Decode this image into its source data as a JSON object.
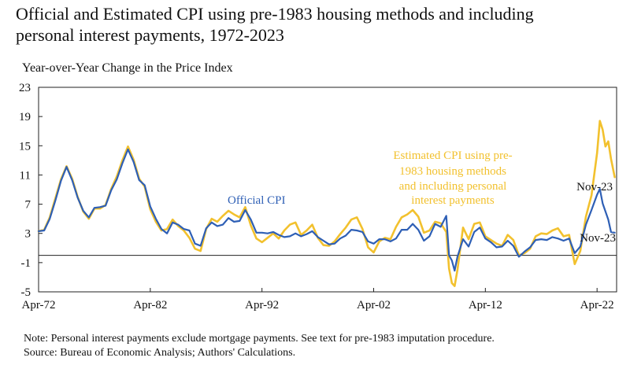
{
  "title_line1": "Official and Estimated CPI using pre-1983 housing methods and including",
  "title_line2": "personal interest payments, 1972-2023",
  "note_line1": "Note: Personal interest payments exclude mortgage payments. See text for pre-1983 imputation procedure.",
  "note_line2": "Source: Bureau of Economic Analysis; Authors' Calculations.",
  "chart_data": {
    "type": "line",
    "title": "Official and Estimated CPI using pre-1983 housing methods and including personal interest payments, 1972-2023",
    "ylabel": "Year-over-Year Change in the Price Index",
    "xlabel": "",
    "xlim": [
      1972.25,
      2024.0
    ],
    "ylim": [
      -5,
      23
    ],
    "yticks": [
      -5,
      -1,
      3,
      7,
      11,
      15,
      19,
      23
    ],
    "xticks": [
      {
        "label": "Apr-72",
        "x": 1972.25
      },
      {
        "label": "Apr-82",
        "x": 1982.25
      },
      {
        "label": "Apr-92",
        "x": 1992.25
      },
      {
        "label": "Apr-02",
        "x": 2002.25
      },
      {
        "label": "Apr-12",
        "x": 2012.25
      },
      {
        "label": "Apr-22",
        "x": 2022.25
      }
    ],
    "colors": {
      "official": "#2e5fb5",
      "estimated": "#f2c12e"
    },
    "annotations": [
      {
        "text": "Official CPI",
        "series": "Official CPI"
      },
      {
        "text": "Estimated CPI using pre-",
        "series": "Estimated"
      },
      {
        "text": "1983 housing methods",
        "series": "Estimated"
      },
      {
        "text": "and including  personal",
        "series": "Estimated"
      },
      {
        "text": "interest payments",
        "series": "Estimated"
      },
      {
        "text": "Nov-23",
        "series": "Estimated"
      },
      {
        "text": "Nov-23",
        "series": "Official CPI"
      }
    ],
    "series": [
      {
        "name": "Official CPI",
        "points": [
          [
            1972.25,
            3.3
          ],
          [
            1972.75,
            3.4
          ],
          [
            1973.25,
            5.0
          ],
          [
            1973.75,
            7.5
          ],
          [
            1974.25,
            10.2
          ],
          [
            1974.75,
            12.1
          ],
          [
            1975.25,
            10.3
          ],
          [
            1975.75,
            7.9
          ],
          [
            1976.25,
            6.1
          ],
          [
            1976.75,
            5.2
          ],
          [
            1977.25,
            6.5
          ],
          [
            1977.75,
            6.6
          ],
          [
            1978.25,
            6.8
          ],
          [
            1978.75,
            8.9
          ],
          [
            1979.25,
            10.4
          ],
          [
            1979.75,
            12.6
          ],
          [
            1980.25,
            14.5
          ],
          [
            1980.75,
            12.8
          ],
          [
            1981.25,
            10.3
          ],
          [
            1981.75,
            9.6
          ],
          [
            1982.25,
            6.7
          ],
          [
            1982.75,
            5.0
          ],
          [
            1983.25,
            3.6
          ],
          [
            1983.75,
            3.0
          ],
          [
            1984.25,
            4.5
          ],
          [
            1984.75,
            4.2
          ],
          [
            1985.25,
            3.6
          ],
          [
            1985.75,
            3.4
          ],
          [
            1986.25,
            1.6
          ],
          [
            1986.75,
            1.3
          ],
          [
            1987.25,
            3.7
          ],
          [
            1987.75,
            4.5
          ],
          [
            1988.25,
            4.0
          ],
          [
            1988.75,
            4.2
          ],
          [
            1989.25,
            5.1
          ],
          [
            1989.75,
            4.6
          ],
          [
            1990.25,
            4.7
          ],
          [
            1990.75,
            6.2
          ],
          [
            1991.25,
            4.9
          ],
          [
            1991.75,
            3.1
          ],
          [
            1992.25,
            3.1
          ],
          [
            1992.75,
            3.0
          ],
          [
            1993.25,
            3.2
          ],
          [
            1993.75,
            2.8
          ],
          [
            1994.25,
            2.5
          ],
          [
            1994.75,
            2.6
          ],
          [
            1995.25,
            3.0
          ],
          [
            1995.75,
            2.6
          ],
          [
            1996.25,
            2.9
          ],
          [
            1996.75,
            3.3
          ],
          [
            1997.25,
            2.5
          ],
          [
            1997.75,
            2.0
          ],
          [
            1998.25,
            1.5
          ],
          [
            1998.75,
            1.6
          ],
          [
            1999.25,
            2.3
          ],
          [
            1999.75,
            2.7
          ],
          [
            2000.25,
            3.5
          ],
          [
            2000.75,
            3.4
          ],
          [
            2001.25,
            3.2
          ],
          [
            2001.75,
            1.9
          ],
          [
            2002.25,
            1.6
          ],
          [
            2002.75,
            2.2
          ],
          [
            2003.25,
            2.2
          ],
          [
            2003.75,
            1.9
          ],
          [
            2004.25,
            2.3
          ],
          [
            2004.75,
            3.5
          ],
          [
            2005.25,
            3.5
          ],
          [
            2005.75,
            4.3
          ],
          [
            2006.25,
            3.5
          ],
          [
            2006.75,
            2.0
          ],
          [
            2007.25,
            2.6
          ],
          [
            2007.75,
            4.3
          ],
          [
            2008.25,
            3.9
          ],
          [
            2008.75,
            5.4
          ],
          [
            2009.0,
            0.0
          ],
          [
            2009.25,
            -0.7
          ],
          [
            2009.5,
            -2.1
          ],
          [
            2009.75,
            -0.2
          ],
          [
            2010.25,
            2.2
          ],
          [
            2010.75,
            1.2
          ],
          [
            2011.25,
            3.2
          ],
          [
            2011.75,
            3.8
          ],
          [
            2012.25,
            2.3
          ],
          [
            2012.75,
            1.8
          ],
          [
            2013.25,
            1.1
          ],
          [
            2013.75,
            1.2
          ],
          [
            2014.25,
            2.0
          ],
          [
            2014.75,
            1.3
          ],
          [
            2015.25,
            -0.2
          ],
          [
            2015.75,
            0.5
          ],
          [
            2016.25,
            1.1
          ],
          [
            2016.75,
            2.1
          ],
          [
            2017.25,
            2.2
          ],
          [
            2017.75,
            2.1
          ],
          [
            2018.25,
            2.5
          ],
          [
            2018.75,
            2.3
          ],
          [
            2019.25,
            2.0
          ],
          [
            2019.75,
            2.3
          ],
          [
            2020.25,
            0.3
          ],
          [
            2020.75,
            1.2
          ],
          [
            2021.25,
            4.2
          ],
          [
            2021.75,
            6.2
          ],
          [
            2022.25,
            8.3
          ],
          [
            2022.5,
            9.1
          ],
          [
            2022.75,
            7.1
          ],
          [
            2023.25,
            4.9
          ],
          [
            2023.5,
            3.2
          ],
          [
            2023.83,
            3.1
          ]
        ]
      },
      {
        "name": "Estimated CPI using pre-1983 housing methods and including personal interest payments",
        "points": [
          [
            1972.25,
            3.3
          ],
          [
            1972.75,
            3.5
          ],
          [
            1973.25,
            5.2
          ],
          [
            1973.75,
            7.8
          ],
          [
            1974.25,
            10.4
          ],
          [
            1974.75,
            12.2
          ],
          [
            1975.25,
            10.5
          ],
          [
            1975.75,
            8.0
          ],
          [
            1976.25,
            6.0
          ],
          [
            1976.75,
            5.0
          ],
          [
            1977.25,
            6.4
          ],
          [
            1977.75,
            6.4
          ],
          [
            1978.25,
            6.9
          ],
          [
            1978.75,
            9.1
          ],
          [
            1979.25,
            10.8
          ],
          [
            1979.75,
            13.0
          ],
          [
            1980.25,
            14.9
          ],
          [
            1980.75,
            13.1
          ],
          [
            1981.25,
            10.5
          ],
          [
            1981.75,
            9.4
          ],
          [
            1982.25,
            6.3
          ],
          [
            1982.75,
            4.6
          ],
          [
            1983.25,
            3.4
          ],
          [
            1983.75,
            3.6
          ],
          [
            1984.25,
            4.9
          ],
          [
            1984.75,
            4.0
          ],
          [
            1985.25,
            3.4
          ],
          [
            1985.75,
            2.4
          ],
          [
            1986.25,
            0.9
          ],
          [
            1986.75,
            0.6
          ],
          [
            1987.25,
            3.6
          ],
          [
            1987.75,
            5.0
          ],
          [
            1988.25,
            4.6
          ],
          [
            1988.75,
            5.4
          ],
          [
            1989.25,
            6.1
          ],
          [
            1989.75,
            5.6
          ],
          [
            1990.25,
            5.2
          ],
          [
            1990.75,
            6.6
          ],
          [
            1991.25,
            4.1
          ],
          [
            1991.75,
            2.3
          ],
          [
            1992.25,
            1.8
          ],
          [
            1992.75,
            2.4
          ],
          [
            1993.25,
            3.0
          ],
          [
            1993.75,
            2.3
          ],
          [
            1994.25,
            3.4
          ],
          [
            1994.75,
            4.2
          ],
          [
            1995.25,
            4.5
          ],
          [
            1995.75,
            2.8
          ],
          [
            1996.25,
            3.4
          ],
          [
            1996.75,
            4.2
          ],
          [
            1997.25,
            2.4
          ],
          [
            1997.75,
            1.4
          ],
          [
            1998.25,
            1.3
          ],
          [
            1998.75,
            1.9
          ],
          [
            1999.25,
            2.9
          ],
          [
            1999.75,
            3.8
          ],
          [
            2000.25,
            4.9
          ],
          [
            2000.75,
            5.2
          ],
          [
            2001.25,
            3.6
          ],
          [
            2001.75,
            1.1
          ],
          [
            2002.25,
            0.4
          ],
          [
            2002.75,
            1.9
          ],
          [
            2003.25,
            2.4
          ],
          [
            2003.75,
            2.2
          ],
          [
            2004.25,
            3.9
          ],
          [
            2004.75,
            5.2
          ],
          [
            2005.25,
            5.6
          ],
          [
            2005.75,
            6.2
          ],
          [
            2006.25,
            5.3
          ],
          [
            2006.75,
            3.1
          ],
          [
            2007.25,
            3.4
          ],
          [
            2007.75,
            4.6
          ],
          [
            2008.25,
            4.4
          ],
          [
            2008.75,
            3.2
          ],
          [
            2009.0,
            -1.8
          ],
          [
            2009.25,
            -3.8
          ],
          [
            2009.5,
            -4.2
          ],
          [
            2009.75,
            -2.0
          ],
          [
            2010.25,
            3.8
          ],
          [
            2010.75,
            2.2
          ],
          [
            2011.25,
            4.3
          ],
          [
            2011.75,
            4.5
          ],
          [
            2012.25,
            2.6
          ],
          [
            2012.75,
            2.1
          ],
          [
            2013.25,
            1.6
          ],
          [
            2013.75,
            1.3
          ],
          [
            2014.25,
            2.8
          ],
          [
            2014.75,
            2.1
          ],
          [
            2015.25,
            0.0
          ],
          [
            2015.75,
            0.3
          ],
          [
            2016.25,
            0.9
          ],
          [
            2016.75,
            2.6
          ],
          [
            2017.25,
            3.0
          ],
          [
            2017.75,
            2.9
          ],
          [
            2018.25,
            3.4
          ],
          [
            2018.75,
            3.7
          ],
          [
            2019.25,
            2.6
          ],
          [
            2019.75,
            2.8
          ],
          [
            2020.25,
            -1.2
          ],
          [
            2020.75,
            0.6
          ],
          [
            2021.25,
            5.3
          ],
          [
            2021.75,
            8.2
          ],
          [
            2022.25,
            14.0
          ],
          [
            2022.5,
            18.4
          ],
          [
            2022.75,
            17.2
          ],
          [
            2023.0,
            14.9
          ],
          [
            2023.25,
            15.6
          ],
          [
            2023.5,
            13.2
          ],
          [
            2023.83,
            10.7
          ]
        ]
      }
    ]
  }
}
